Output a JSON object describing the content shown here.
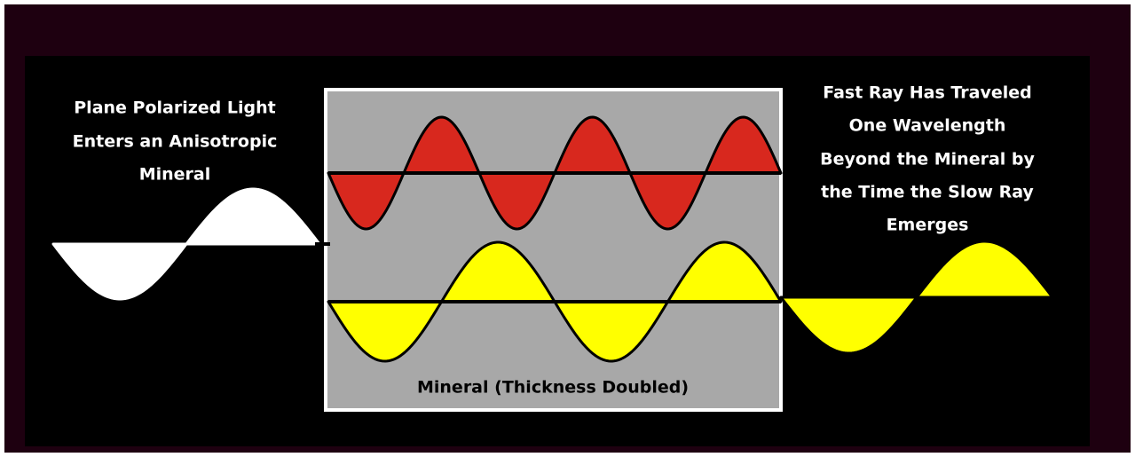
{
  "left_label": {
    "lines": [
      "Plane Polarized Light",
      "Enters an Anisotropic",
      "Mineral"
    ]
  },
  "right_label": {
    "lines": [
      "Fast Ray Has Traveled",
      "One Wavelength",
      "Beyond the Mineral by",
      "the Time the Slow Ray",
      "Emerges"
    ]
  },
  "mineral_label": "Mineral (Thickness Doubled)"
}
